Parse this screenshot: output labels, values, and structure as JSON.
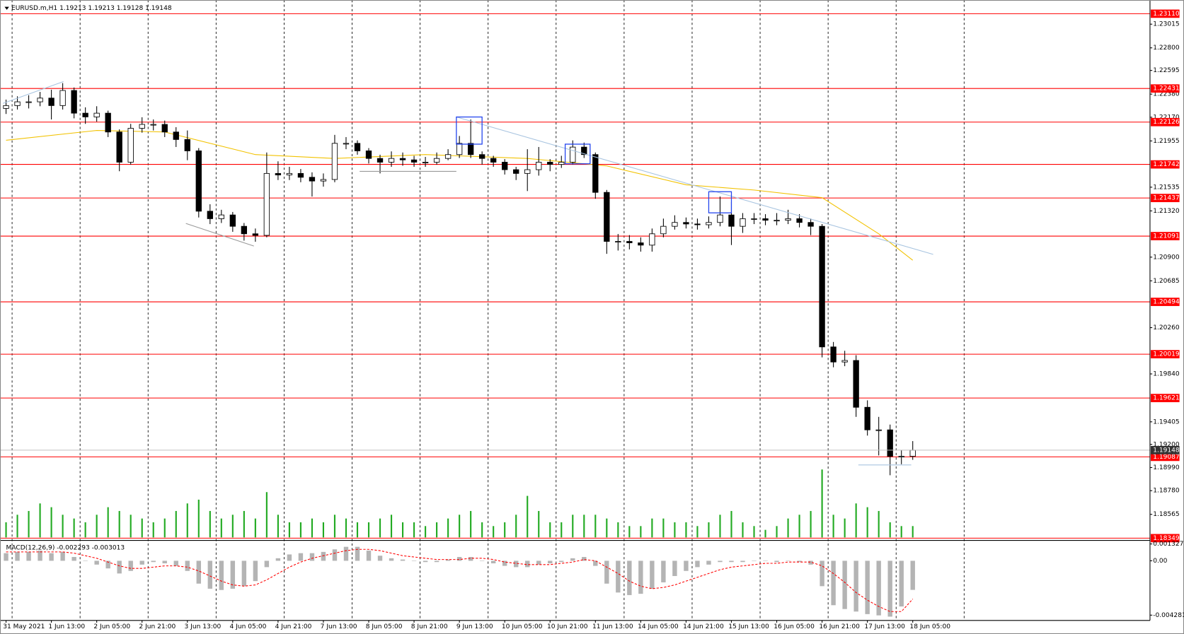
{
  "chart_data": {
    "type": "candlestick",
    "title": "EURUSD.m,H1  1.19213 1.19213 1.19128 1.19148",
    "categories": [
      "31 May 2021",
      null,
      null,
      null,
      "1 Jun 13:00",
      null,
      null,
      null,
      "2 Jun 05:00",
      null,
      null,
      null,
      "2 Jun 21:00",
      null,
      null,
      null,
      "3 Jun 13:00",
      null,
      null,
      null,
      "4 Jun 05:00",
      null,
      null,
      null,
      "4 Jun 21:00",
      null,
      null,
      null,
      "7 Jun 13:00",
      null,
      null,
      null,
      "8 Jun 05:00",
      null,
      null,
      null,
      "8 Jun 21:00",
      null,
      null,
      null,
      "9 Jun 13:00",
      null,
      null,
      null,
      "10 Jun 05:00",
      null,
      null,
      null,
      "10 Jun 21:00",
      null,
      null,
      null,
      "11 Jun 13:00",
      null,
      null,
      null,
      "14 Jun 05:00",
      null,
      null,
      null,
      "14 Jun 21:00",
      null,
      null,
      null,
      "15 Jun 13:00",
      null,
      null,
      null,
      "16 Jun 05:00",
      null,
      null,
      null,
      "16 Jun 21:00",
      null,
      null,
      null,
      "17 Jun 13:00",
      null,
      null,
      null,
      "18 Jun 05:00"
    ],
    "open": [
      1.2225,
      1.22276,
      1.2231,
      1.2231,
      1.22344,
      1.22276,
      1.22413,
      1.22207,
      1.22173,
      1.22207,
      1.22036,
      1.21762,
      1.2207,
      1.22105,
      1.22105,
      1.22036,
      1.21968,
      1.21865,
      1.21317,
      1.21249,
      1.21283,
      1.2118,
      1.21112,
      1.21098,
      1.2166,
      1.21646,
      1.2166,
      1.21625,
      1.21591,
      1.21605,
      1.21933,
      1.21933,
      1.21865,
      1.21796,
      1.21762,
      1.21796,
      1.21783,
      1.21762,
      1.21762,
      1.21796,
      1.21831,
      1.21933,
      1.21831,
      1.21796,
      1.21762,
      1.21694,
      1.2166,
      1.21694,
      1.21762,
      1.21742,
      1.21762,
      1.21899,
      1.21831,
      1.21488,
      1.21043,
      1.21043,
      1.2103,
      1.21009,
      1.21112,
      1.2118,
      1.21215,
      1.21201,
      1.21194,
      1.21215,
      1.21283,
      1.2118,
      1.21249,
      1.21249,
      1.21235,
      1.21235,
      1.21249,
      1.21215,
      1.2118,
      1.20085,
      1.19948,
      1.19962,
      1.19537,
      1.19332,
      1.19332,
      1.19092,
      1.19092
    ],
    "high": [
      1.2233,
      1.2236,
      1.2237,
      1.224,
      1.2242,
      1.2248,
      1.2244,
      1.2226,
      1.2227,
      1.2223,
      1.2206,
      1.2211,
      1.2217,
      1.2215,
      1.2214,
      1.2208,
      1.2205,
      1.2189,
      1.2138,
      1.2133,
      1.2131,
      1.2121,
      1.2116,
      1.2185,
      1.2177,
      1.2172,
      1.217,
      1.2167,
      1.2166,
      1.2201,
      1.2199,
      1.2196,
      1.2189,
      1.2183,
      1.2186,
      1.2185,
      1.2182,
      1.2181,
      1.2185,
      1.2188,
      1.22,
      1.2215,
      1.2186,
      1.2182,
      1.2179,
      1.2172,
      1.2188,
      1.219,
      1.2179,
      1.2182,
      1.2196,
      1.2194,
      1.2185,
      1.2151,
      1.2111,
      1.211,
      1.2108,
      1.2116,
      1.2125,
      1.2128,
      1.2126,
      1.2125,
      1.2127,
      1.2145,
      1.214,
      1.213,
      1.213,
      1.2129,
      1.213,
      1.2133,
      1.2129,
      1.2125,
      1.212,
      1.2013,
      1.2005,
      1.2001,
      1.196,
      1.1945,
      1.1938,
      1.1915,
      1.1923
    ],
    "low": [
      1.222,
      1.2224,
      1.2225,
      1.2227,
      1.2215,
      1.2224,
      1.2216,
      1.2211,
      1.2213,
      1.2199,
      1.2168,
      1.2174,
      1.2203,
      1.2205,
      1.2199,
      1.219,
      1.2178,
      1.2126,
      1.212,
      1.2121,
      1.2113,
      1.2105,
      1.2104,
      1.2108,
      1.216,
      1.216,
      1.2158,
      1.2145,
      1.2154,
      1.2158,
      1.2188,
      1.2183,
      1.2175,
      1.2166,
      1.2172,
      1.2173,
      1.2172,
      1.2172,
      1.2174,
      1.2178,
      1.218,
      1.218,
      1.2174,
      1.2172,
      1.2165,
      1.216,
      1.215,
      1.2164,
      1.2168,
      1.2171,
      1.2174,
      1.218,
      1.2143,
      1.2093,
      1.2096,
      1.2097,
      1.2095,
      1.2095,
      1.2108,
      1.2115,
      1.2116,
      1.2115,
      1.2116,
      1.2118,
      1.2101,
      1.2112,
      1.212,
      1.2119,
      1.2119,
      1.212,
      1.2117,
      1.211,
      1.1999,
      1.199,
      1.1991,
      1.1945,
      1.1928,
      1.191,
      1.1892,
      1.1902,
      1.1906
    ],
    "close": [
      1.22276,
      1.2231,
      1.2231,
      1.22344,
      1.22276,
      1.22413,
      1.22207,
      1.22173,
      1.22207,
      1.22036,
      1.21762,
      1.2207,
      1.22105,
      1.22105,
      1.22036,
      1.21968,
      1.21865,
      1.21317,
      1.21249,
      1.21283,
      1.2118,
      1.21112,
      1.21098,
      1.2166,
      1.21646,
      1.2166,
      1.21625,
      1.21591,
      1.21605,
      1.21933,
      1.21933,
      1.21865,
      1.21796,
      1.21762,
      1.21796,
      1.21783,
      1.21762,
      1.21762,
      1.21796,
      1.21831,
      1.21933,
      1.21831,
      1.21796,
      1.21762,
      1.21694,
      1.2166,
      1.21694,
      1.21762,
      1.21742,
      1.21762,
      1.21899,
      1.21831,
      1.21488,
      1.21043,
      1.21043,
      1.2103,
      1.21009,
      1.21112,
      1.2118,
      1.21215,
      1.21201,
      1.21194,
      1.21215,
      1.21283,
      1.2118,
      1.21249,
      1.21249,
      1.21235,
      1.21235,
      1.21249,
      1.21215,
      1.2118,
      1.20085,
      1.19948,
      1.19962,
      1.19537,
      1.19332,
      1.19332,
      1.19092,
      1.19092,
      1.19148
    ],
    "volume": [
      2000,
      3000,
      3500,
      4500,
      4000,
      3000,
      2500,
      2000,
      3000,
      4000,
      3500,
      3000,
      2500,
      2000,
      2500,
      3500,
      4500,
      5000,
      3500,
      2500,
      3000,
      3500,
      2500,
      6000,
      3000,
      2000,
      2000,
      2500,
      2000,
      3000,
      2500,
      2000,
      2000,
      2500,
      3000,
      2000,
      2000,
      1500,
      2000,
      2500,
      3000,
      3500,
      2000,
      1500,
      2000,
      3000,
      5500,
      3500,
      2000,
      2000,
      3000,
      3000,
      3000,
      2500,
      2000,
      1500,
      1500,
      2500,
      2500,
      2000,
      2000,
      1500,
      2000,
      3000,
      3500,
      2000,
      1500,
      1000,
      1500,
      2500,
      3000,
      3500,
      9000,
      3000,
      2500,
      4500,
      4000,
      3500,
      2000,
      1500,
      1500
    ],
    "color_up": "#ffffff",
    "color_down": "#000000",
    "volume_color": "#22aa22",
    "ylim": [
      1.18349,
      1.23207
    ],
    "yticks": [
      1.23015,
      {
        "value": 1.228,
        "label": "1.22800"
      },
      1.22595,
      {
        "value": 1.2238,
        "label": "1.22380"
      },
      {
        "value": 1.2217,
        "label": "1.22170"
      },
      1.21955,
      1.21535,
      {
        "value": 1.2132,
        "label": "1.21320"
      },
      {
        "value": 1.209,
        "label": "1.20900"
      },
      1.20685,
      {
        "value": 1.2026,
        "label": "1.20260"
      },
      {
        "value": 1.1984,
        "label": "1.19840"
      },
      1.19405,
      {
        "value": 1.192,
        "label": "1.19200"
      },
      {
        "value": 1.1899,
        "label": "1.18990"
      },
      {
        "value": 1.1878,
        "label": "1.18780"
      },
      1.18565
    ],
    "levels": [
      {
        "value": 1.2311,
        "label": "1.23110"
      },
      1.22431,
      1.22126,
      1.21742,
      1.21437,
      1.21091,
      1.20494,
      1.20019,
      1.19621,
      1.19087,
      1.18349
    ],
    "level_color": "#ff0000",
    "last_price": 1.19148,
    "ma": {
      "x": [
        0,
        8,
        14,
        22,
        29,
        37,
        46,
        53,
        60,
        66,
        72,
        77,
        80
      ],
      "values": [
        1.21961,
        1.2205,
        1.22036,
        1.21831,
        1.21796,
        1.21831,
        1.21796,
        1.21728,
        1.21557,
        1.21509,
        1.2144,
        1.21112,
        1.20872
      ],
      "color": "#f2c200"
    },
    "macd": {
      "title": "MACD(12,26,9) -0.002293 -0.003013",
      "histogram": [
        0.0006,
        0.0007,
        0.0007,
        0.0008,
        0.0006,
        0.0007,
        0.0003,
        0.0,
        -0.0003,
        -0.0006,
        -0.001,
        -0.0008,
        -0.0003,
        -0.0001,
        -0.0002,
        -0.0004,
        -0.0008,
        -0.0018,
        -0.0022,
        -0.0023,
        -0.0022,
        -0.002,
        -0.0016,
        -0.0005,
        0.0002,
        0.0005,
        0.0006,
        0.0006,
        0.0007,
        0.0009,
        0.0011,
        0.0011,
        0.0008,
        0.0004,
        0.0002,
        0.0001,
        0.0,
        -0.0001,
        -0.0001,
        0.0001,
        0.0003,
        0.0003,
        0.0,
        -0.0002,
        -0.0004,
        -0.0005,
        -0.0005,
        -0.0003,
        -0.0002,
        -0.0001,
        0.0002,
        0.0003,
        -0.0004,
        -0.0018,
        -0.0025,
        -0.0027,
        -0.0026,
        -0.0022,
        -0.0017,
        -0.0012,
        -0.0008,
        -0.0005,
        -0.0003,
        -0.0001,
        -0.0001,
        -0.0001,
        0.0,
        0.0,
        -0.0001,
        0.0,
        -0.0001,
        -0.0003,
        -0.002,
        -0.0035,
        -0.0038,
        -0.004,
        -0.0042,
        -0.0043,
        -0.0044,
        -0.0036,
        -0.002293
      ],
      "signal": [
        0.0007,
        0.0007,
        0.0007,
        0.0007,
        0.0007,
        0.0007,
        0.0006,
        0.0004,
        0.0002,
        -0.0001,
        -0.0004,
        -0.0006,
        -0.0006,
        -0.0005,
        -0.0004,
        -0.0004,
        -0.0005,
        -0.0008,
        -0.0012,
        -0.0016,
        -0.0019,
        -0.002,
        -0.0019,
        -0.0015,
        -0.001,
        -0.0005,
        -0.0001,
        0.0002,
        0.0004,
        0.0006,
        0.0008,
        0.0009,
        0.0009,
        0.0008,
        0.0006,
        0.0004,
        0.0003,
        0.0002,
        0.0001,
        0.0001,
        0.0001,
        0.0002,
        0.0002,
        0.0001,
        -0.0001,
        -0.0002,
        -0.0003,
        -0.0003,
        -0.0003,
        -0.0002,
        -0.0001,
        0.0001,
        0.0,
        -0.0005,
        -0.001,
        -0.0016,
        -0.002,
        -0.0022,
        -0.0021,
        -0.0019,
        -0.0016,
        -0.0013,
        -0.001,
        -0.0007,
        -0.0005,
        -0.0004,
        -0.0003,
        -0.0002,
        -0.0002,
        -0.0001,
        -0.0001,
        -0.0001,
        -0.0004,
        -0.001,
        -0.0017,
        -0.0025,
        -0.0031,
        -0.0036,
        -0.004,
        -0.004,
        -0.003013
      ],
      "ylim": [
        -0.004697,
        0.001546
      ],
      "yticks": [
        0.001327,
        {
          "value": 0,
          "label": "0.00"
        },
        -0.004281
      ],
      "hist_color": "#b4b4b4",
      "signal_color": "#ff0000"
    }
  }
}
